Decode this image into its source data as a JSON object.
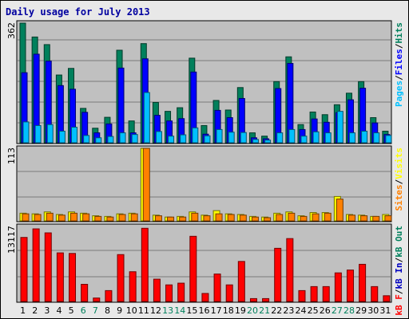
{
  "title": "Daily usage for July 2013",
  "colors": {
    "hits": "#00805c",
    "files": "#0000ff",
    "pages": "#00c0ff",
    "visits": "#ffff00",
    "sites": "#ff8000",
    "kbytes": "#ff0000",
    "weekday_label": "#000000",
    "weekend_label": "#00805c",
    "title": "#0000a0"
  },
  "chart_data": [
    {
      "type": "bar",
      "panel": "hits-files-pages",
      "categories": [
        "1",
        "2",
        "3",
        "4",
        "5",
        "6",
        "7",
        "8",
        "9",
        "10",
        "11",
        "12",
        "13",
        "14",
        "15",
        "16",
        "17",
        "18",
        "19",
        "20",
        "21",
        "22",
        "23",
        "24",
        "25",
        "26",
        "27",
        "28",
        "29",
        "30",
        "31"
      ],
      "ymax_label": "362",
      "ylim": [
        0,
        362
      ],
      "series": [
        {
          "name": "Hits",
          "values": [
            362,
            320,
            297,
            205,
            225,
            104,
            44,
            77,
            280,
            66,
            300,
            122,
            95,
            106,
            256,
            52,
            128,
            99,
            167,
            30,
            20,
            185,
            260,
            55,
            93,
            85,
            115,
            150,
            185,
            76,
            35
          ]
        },
        {
          "name": "Files",
          "values": [
            212,
            268,
            247,
            173,
            162,
            92,
            30,
            57,
            226,
            30,
            254,
            83,
            66,
            73,
            214,
            26,
            98,
            76,
            134,
            15,
            12,
            164,
            240,
            40,
            72,
            62,
            91,
            130,
            165,
            60,
            25
          ]
        },
        {
          "name": "Pages",
          "values": [
            63,
            52,
            55,
            35,
            47,
            22,
            15,
            19,
            30,
            25,
            152,
            34,
            20,
            24,
            45,
            21,
            40,
            32,
            31,
            10,
            8,
            30,
            40,
            20,
            33,
            30,
            95,
            30,
            35,
            30,
            22
          ]
        }
      ],
      "legend": [
        "Pages",
        "Files",
        "Hits"
      ],
      "legend_placement": "right",
      "grid": true
    },
    {
      "type": "bar",
      "panel": "visits-sites",
      "categories": [
        "1",
        "2",
        "3",
        "4",
        "5",
        "6",
        "7",
        "8",
        "9",
        "10",
        "11",
        "12",
        "13",
        "14",
        "15",
        "16",
        "17",
        "18",
        "19",
        "20",
        "21",
        "22",
        "23",
        "24",
        "25",
        "26",
        "27",
        "28",
        "29",
        "30",
        "31"
      ],
      "ymax_label": "113",
      "ylim": [
        0,
        113
      ],
      "series": [
        {
          "name": "Visits",
          "values": [
            12,
            11,
            14,
            10,
            14,
            12,
            8,
            7,
            11,
            12,
            113,
            9,
            6,
            7,
            14,
            9,
            16,
            11,
            10,
            7,
            6,
            12,
            14,
            8,
            13,
            13,
            38,
            10,
            9,
            7,
            10
          ]
        },
        {
          "name": "Sites",
          "values": [
            11,
            10,
            12,
            9,
            12,
            11,
            7,
            6,
            10,
            11,
            113,
            8,
            6,
            6,
            12,
            8,
            11,
            10,
            9,
            6,
            5,
            10,
            12,
            7,
            11,
            12,
            34,
            9,
            8,
            7,
            8
          ]
        }
      ],
      "legend": [
        "Sites",
        "Visits"
      ],
      "legend_placement": "right",
      "grid": true
    },
    {
      "type": "bar",
      "panel": "kbytes",
      "categories": [
        "1",
        "2",
        "3",
        "4",
        "5",
        "6",
        "7",
        "8",
        "9",
        "10",
        "11",
        "12",
        "13",
        "14",
        "15",
        "16",
        "17",
        "18",
        "19",
        "20",
        "21",
        "22",
        "23",
        "24",
        "25",
        "26",
        "27",
        "28",
        "29",
        "30",
        "31"
      ],
      "ymax_label": "13117",
      "ylim": [
        0,
        13117
      ],
      "series": [
        {
          "name": "kB F",
          "values": [
            11200,
            12700,
            12000,
            8500,
            8400,
            3000,
            600,
            1900,
            8200,
            5200,
            12800,
            3900,
            2900,
            3200,
            11400,
            1400,
            4800,
            2900,
            7000,
            500,
            500,
            9300,
            11000,
            1900,
            2600,
            2600,
            5000,
            5500,
            6500,
            2600,
            1000
          ]
        }
      ],
      "legend": [
        "kB F",
        "kB In",
        "kB Out"
      ],
      "legend_placement": "right",
      "grid": true
    }
  ],
  "weekend_days": [
    "6",
    "7",
    "13",
    "14",
    "20",
    "21",
    "27",
    "28"
  ],
  "legend_separator": "/"
}
